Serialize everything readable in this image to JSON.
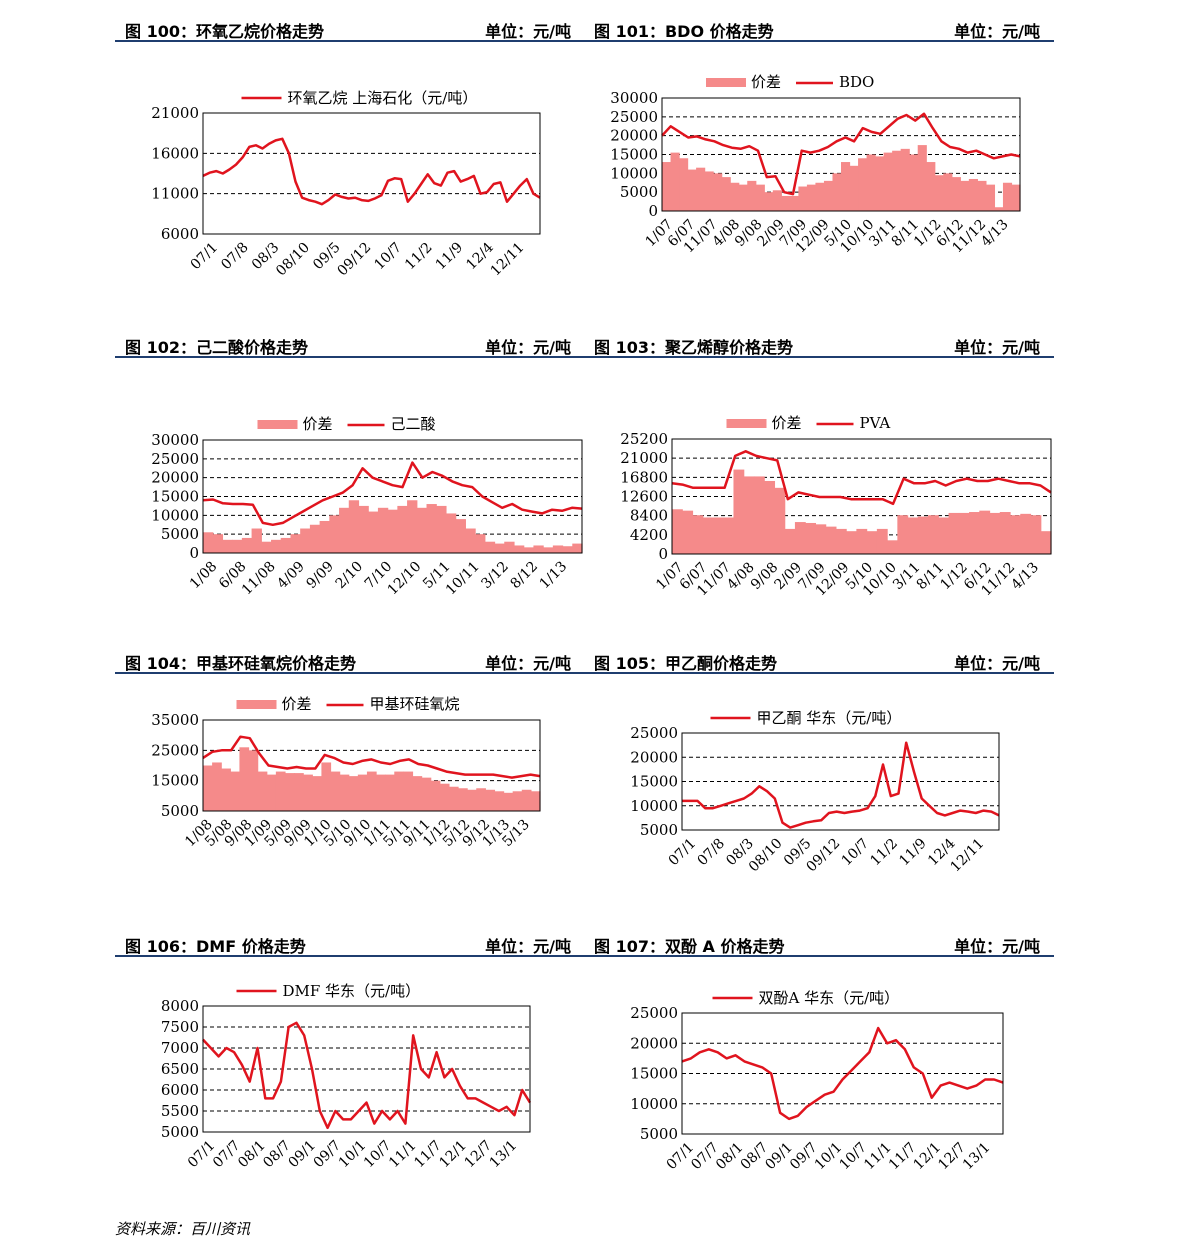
{
  "source": {
    "label": "资料来源：",
    "name": "百川资讯"
  },
  "charts": [
    {
      "fig": "图 100：",
      "title": "环氧乙烷价格走势",
      "unit": "单位：元/吨",
      "chart_data": {
        "type": "line",
        "legend": {
          "line": "环氧乙烷 上海石化（元/吨）"
        },
        "ylim": [
          6000,
          21000
        ],
        "yticks": [
          21000,
          16000,
          11000,
          6000
        ],
        "xticks": [
          "07/1",
          "07/8",
          "08/3",
          "08/10",
          "09/5",
          "09/12",
          "10/7",
          "11/2",
          "11/9",
          "12/4",
          "12/11"
        ],
        "line": [
          13200,
          13600,
          13800,
          13500,
          14000,
          14600,
          15500,
          16800,
          17000,
          16600,
          17200,
          17600,
          17800,
          16000,
          12500,
          10500,
          10200,
          10000,
          9700,
          10200,
          10900,
          10600,
          10400,
          10500,
          10200,
          10100,
          10400,
          10800,
          12600,
          12900,
          12800,
          10000,
          11000,
          12200,
          13400,
          12300,
          12000,
          13600,
          13800,
          12500,
          12800,
          13200,
          11000,
          11200,
          12200,
          12400,
          10000,
          11000,
          12000,
          12800,
          11000,
          10500
        ],
        "bars": null
      }
    },
    {
      "fig": "图 101：",
      "title": "BDO 价格走势",
      "unit": "单位：元/吨",
      "chart_data": {
        "type": "bar+line",
        "legend": {
          "bar": "价差",
          "line": "BDO"
        },
        "ylim": [
          0,
          30000
        ],
        "yticks": [
          30000,
          25000,
          20000,
          15000,
          10000,
          5000,
          0
        ],
        "xticks": [
          "1/07",
          "6/07",
          "11/07",
          "4/08",
          "9/08",
          "2/09",
          "7/09",
          "12/09",
          "5/10",
          "10/10",
          "3/11",
          "8/11",
          "1/12",
          "6/12",
          "11/12",
          "4/13"
        ],
        "line": [
          20000,
          22500,
          21000,
          19500,
          19800,
          19000,
          18500,
          17500,
          16800,
          16500,
          17200,
          16000,
          9000,
          9200,
          5000,
          4500,
          16000,
          15500,
          16000,
          17000,
          18500,
          19500,
          18500,
          22000,
          21000,
          20500,
          22500,
          24500,
          25500,
          24000,
          25800,
          22000,
          18500,
          17000,
          16500,
          15500,
          16000,
          15000,
          14000,
          14500,
          15000,
          14500
        ],
        "bars": [
          13000,
          15500,
          14000,
          11000,
          11500,
          10500,
          10000,
          9000,
          7500,
          7000,
          8000,
          7000,
          5000,
          5500,
          4000,
          4000,
          6500,
          7000,
          7500,
          8000,
          10000,
          13000,
          12000,
          14000,
          15000,
          14500,
          15500,
          16000,
          16500,
          15000,
          17500,
          13000,
          9500,
          10000,
          9000,
          8000,
          8500,
          8000,
          7000,
          1000,
          7500,
          7000
        ]
      }
    },
    {
      "fig": "图 102：",
      "title": "己二酸价格走势",
      "unit": "单位：元/吨",
      "chart_data": {
        "type": "bar+line",
        "legend": {
          "bar": "价差",
          "line": "己二酸"
        },
        "ylim": [
          0,
          30000
        ],
        "yticks": [
          30000,
          25000,
          20000,
          15000,
          10000,
          5000,
          0
        ],
        "xticks": [
          "1/08",
          "6/08",
          "11/08",
          "4/09",
          "9/09",
          "2/10",
          "7/10",
          "12/10",
          "5/11",
          "10/11",
          "3/12",
          "8/12",
          "1/13"
        ],
        "line": [
          14000,
          14200,
          13200,
          13000,
          13000,
          12800,
          8000,
          7500,
          8000,
          9500,
          11000,
          12500,
          14000,
          15000,
          16000,
          18000,
          22500,
          20000,
          19000,
          18000,
          17500,
          24000,
          20000,
          21500,
          20500,
          19000,
          18000,
          17500,
          15000,
          13500,
          12000,
          13000,
          11500,
          11000,
          10500,
          11500,
          11200,
          12000,
          11800
        ],
        "bars": [
          5500,
          5000,
          3500,
          3500,
          4000,
          6500,
          3000,
          3500,
          4000,
          5000,
          6500,
          7500,
          8500,
          10000,
          12000,
          14000,
          12500,
          11000,
          12000,
          11500,
          12500,
          14000,
          12000,
          13000,
          12500,
          10500,
          9000,
          6500,
          5000,
          3000,
          2500,
          3000,
          2000,
          1500,
          2000,
          1500,
          2000,
          1800,
          2500
        ]
      }
    },
    {
      "fig": "图 103：",
      "title": "聚乙烯醇价格走势",
      "unit": "单位：元/吨",
      "chart_data": {
        "type": "bar+line",
        "legend": {
          "bar": "价差",
          "line": "PVA"
        },
        "ylim": [
          0,
          25200
        ],
        "yticks": [
          25200,
          21000,
          16800,
          12600,
          8400,
          4200,
          0
        ],
        "xticks": [
          "1/07",
          "6/07",
          "11/07",
          "4/08",
          "9/08",
          "2/09",
          "7/09",
          "12/09",
          "5/10",
          "10/10",
          "3/11",
          "8/11",
          "1/12",
          "6/12",
          "11/12",
          "4/13"
        ],
        "line": [
          15500,
          15200,
          14500,
          14500,
          14500,
          14500,
          21500,
          22500,
          21500,
          21000,
          20500,
          12000,
          13500,
          13000,
          12500,
          12500,
          12500,
          12000,
          12000,
          12000,
          12000,
          11000,
          16500,
          15500,
          15500,
          16000,
          15000,
          16000,
          16500,
          16000,
          16000,
          16500,
          16000,
          15500,
          15500,
          15000,
          13500
        ],
        "bars": [
          9800,
          9500,
          8500,
          8000,
          8000,
          8000,
          18500,
          17000,
          17000,
          16000,
          14500,
          5500,
          7000,
          6800,
          6500,
          6000,
          5500,
          5000,
          5500,
          5000,
          5500,
          3000,
          8500,
          8000,
          8200,
          8500,
          8000,
          9000,
          9000,
          9200,
          9500,
          9000,
          9200,
          8500,
          8800,
          8500,
          5000
        ]
      }
    },
    {
      "fig": "图 104：",
      "title": "甲基环硅氧烷价格走势",
      "unit": "单位：元/吨",
      "chart_data": {
        "type": "bar+line",
        "legend": {
          "bar": "价差",
          "line": "甲基环硅氧烷"
        },
        "ylim": [
          5000,
          35000
        ],
        "yticks": [
          35000,
          25000,
          15000,
          5000
        ],
        "xticks": [
          "1/08",
          "5/08",
          "9/08",
          "1/09",
          "5/09",
          "9/09",
          "1/10",
          "5/10",
          "9/10",
          "1/11",
          "5/11",
          "9/11",
          "1/12",
          "5/12",
          "9/12",
          "1/13",
          "5/13"
        ],
        "line": [
          22500,
          24500,
          25000,
          25000,
          29500,
          29000,
          24000,
          20000,
          19500,
          19000,
          19500,
          19000,
          19000,
          23500,
          22500,
          21000,
          20500,
          21500,
          22000,
          21000,
          20500,
          21500,
          22000,
          20500,
          20000,
          19000,
          18000,
          17500,
          17000,
          17000,
          17000,
          17000,
          16500,
          16000,
          16500,
          17000,
          16500
        ],
        "bars": [
          20000,
          21000,
          19000,
          18000,
          26000,
          25000,
          18000,
          17000,
          18000,
          17500,
          17500,
          17000,
          16500,
          21000,
          18000,
          17000,
          16500,
          17000,
          18000,
          17000,
          17000,
          18000,
          18000,
          16500,
          16000,
          15000,
          14000,
          13000,
          12500,
          12000,
          12500,
          12000,
          11500,
          11000,
          11500,
          12000,
          11500
        ]
      }
    },
    {
      "fig": "图 105：",
      "title": "甲乙酮价格走势",
      "unit": "单位：元/吨",
      "chart_data": {
        "type": "line",
        "legend": {
          "line": "甲乙酮 华东（元/吨）"
        },
        "ylim": [
          5000,
          25000
        ],
        "yticks": [
          25000,
          20000,
          15000,
          10000,
          5000
        ],
        "xticks": [
          "07/1",
          "07/8",
          "08/3",
          "08/10",
          "09/5",
          "09/12",
          "10/7",
          "11/2",
          "11/9",
          "12/4",
          "12/11"
        ],
        "line": [
          11000,
          11000,
          11000,
          9500,
          9500,
          10000,
          10500,
          11000,
          11500,
          12500,
          14000,
          13000,
          11500,
          6500,
          5500,
          6000,
          6500,
          6800,
          7000,
          8500,
          8800,
          8500,
          8800,
          9000,
          9500,
          12000,
          18500,
          12000,
          12500,
          23000,
          17000,
          11500,
          10000,
          8500,
          8000,
          8500,
          9000,
          8800,
          8500,
          9000,
          8800,
          8000
        ],
        "bars": null
      }
    },
    {
      "fig": "图 106：",
      "title": "DMF 价格走势",
      "unit": "单位：元/吨",
      "chart_data": {
        "type": "line",
        "legend": {
          "line": "DMF 华东（元/吨）"
        },
        "ylim": [
          5000,
          8000
        ],
        "yticks": [
          8000,
          7500,
          7000,
          6500,
          6000,
          5500,
          5000
        ],
        "xticks": [
          "07/1",
          "07/7",
          "08/1",
          "08/7",
          "09/1",
          "09/7",
          "10/1",
          "10/7",
          "11/1",
          "11/7",
          "12/1",
          "12/7",
          "13/1"
        ],
        "line": [
          7200,
          7000,
          6800,
          7000,
          6900,
          6600,
          6200,
          7000,
          5800,
          5800,
          6200,
          7500,
          7600,
          7300,
          6500,
          5500,
          5100,
          5500,
          5300,
          5300,
          5500,
          5700,
          5200,
          5500,
          5300,
          5500,
          5200,
          7300,
          6500,
          6300,
          6900,
          6300,
          6500,
          6100,
          5800,
          5800,
          5700,
          5600,
          5500,
          5600,
          5400,
          6000,
          5700
        ],
        "bars": null
      }
    },
    {
      "fig": "图 107：",
      "title": "双酚 A 价格走势",
      "unit": "单位：元/吨",
      "chart_data": {
        "type": "line",
        "legend": {
          "line": "双酚A 华东（元/吨）"
        },
        "ylim": [
          5000,
          25000
        ],
        "yticks": [
          25000,
          20000,
          15000,
          10000,
          5000
        ],
        "xticks": [
          "07/1",
          "07/7",
          "08/1",
          "08/7",
          "09/1",
          "09/7",
          "10/1",
          "10/7",
          "11/1",
          "11/7",
          "12/1",
          "12/7",
          "13/1"
        ],
        "line": [
          17000,
          17500,
          18500,
          19000,
          18500,
          17500,
          18000,
          17000,
          16500,
          16000,
          15000,
          8500,
          7500,
          8000,
          9500,
          10500,
          11500,
          12000,
          14000,
          15500,
          17000,
          18500,
          22500,
          20000,
          20500,
          19000,
          16000,
          15000,
          11000,
          13000,
          13500,
          13000,
          12500,
          13000,
          14000,
          14000,
          13500
        ],
        "bars": null
      }
    }
  ]
}
